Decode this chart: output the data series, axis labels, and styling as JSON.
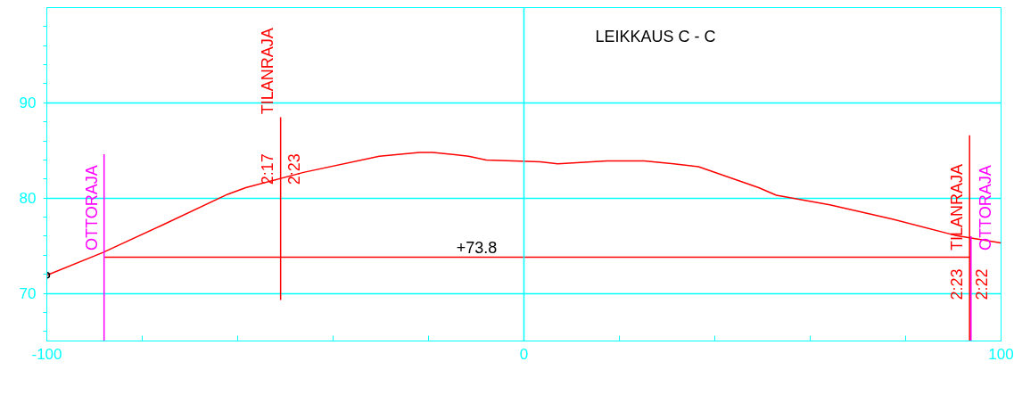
{
  "chart_data": {
    "type": "line",
    "title": "LEIKKAUS C - C",
    "xlim": [
      -100,
      100
    ],
    "ylim": [
      65,
      100
    ],
    "xticks": [
      -100,
      {
        "value": -80,
        "label": null
      },
      {
        "value": -60,
        "label": null
      },
      {
        "value": -40,
        "label": null
      },
      {
        "value": -20,
        "label": null
      },
      0,
      {
        "value": 20,
        "label": null
      },
      {
        "value": 40,
        "label": null
      },
      {
        "value": 60,
        "label": null
      },
      {
        "value": 80,
        "label": null
      },
      100
    ],
    "yticks": [
      {
        "value": 66,
        "label": null
      },
      {
        "value": 68,
        "label": null
      },
      70,
      {
        "value": 72,
        "label": null
      },
      {
        "value": 74,
        "label": null
      },
      {
        "value": 76,
        "label": null
      },
      {
        "value": 78,
        "label": null
      },
      80,
      {
        "value": 82,
        "label": null
      },
      {
        "value": 84,
        "label": null
      },
      {
        "value": 86,
        "label": null
      },
      {
        "value": 88,
        "label": null
      },
      90,
      {
        "value": 92,
        "label": null
      },
      {
        "value": 94,
        "label": null
      },
      {
        "value": 96,
        "label": null
      },
      {
        "value": 98,
        "label": null
      }
    ],
    "grid": "y",
    "ref_lines": [
      {
        "axis": "x",
        "value": 0,
        "color": "#00ffff"
      }
    ],
    "series": [
      {
        "color": "#ff0000",
        "x": [
          -100,
          -88.2,
          -76.1,
          -62.1,
          -58.3,
          -46.2,
          -30.3,
          -21.9,
          -19.1,
          -11.6,
          -7.9,
          3.4,
          7.1,
          17.4,
          25.2,
          31.4,
          36.6,
          49.2,
          52.9,
          64.1,
          77.2,
          90.3,
          100
        ],
        "values": [
          71.9,
          74.3,
          77.1,
          80.4,
          81.1,
          82.7,
          84.4,
          84.8,
          84.8,
          84.4,
          84.0,
          83.8,
          83.6,
          83.9,
          83.9,
          83.6,
          83.3,
          81.1,
          80.3,
          79.3,
          77.8,
          76.1,
          75.3
        ]
      },
      {
        "color": "#ff0000",
        "x": [
          -87.9,
          93.4
        ],
        "values": [
          73.8,
          73.8
        ]
      },
      {
        "color": "#ff00ff",
        "x": [
          -88,
          -88
        ],
        "values": [
          84.6,
          65
        ]
      },
      {
        "color": "#ff0000",
        "x": [
          -51,
          -51
        ],
        "values": [
          88.5,
          69.3
        ]
      },
      {
        "color": "#ff0000",
        "x": [
          93.4,
          93.4
        ],
        "values": [
          86.6,
          65
        ]
      },
      {
        "color": "#ff00ff",
        "x": [
          93.7,
          93.7
        ],
        "values": [
          76.0,
          65
        ]
      },
      {
        "type": "scatter",
        "color": "#000000",
        "x": [
          -100
        ],
        "values": [
          71.9
        ]
      }
    ],
    "annotations": [
      {
        "text": "+73.8",
        "x": -9.9,
        "y": 73.8
      },
      {
        "text": "OTTORAJA",
        "x": -88,
        "y": 74.5
      },
      {
        "text": "TILANRAJA",
        "x": -51,
        "y": 88.8
      },
      {
        "text": "2:17",
        "x": -51,
        "y": 81.4
      },
      {
        "text": "2:23",
        "x": -51,
        "y": 81.4
      },
      {
        "text": "TILANRAJA",
        "x": 93.4,
        "y": 74.5
      },
      {
        "text": "OTTORAJA",
        "x": 93.7,
        "y": 74.5
      },
      {
        "text": "2:23",
        "x": 93.4,
        "y": 69.3
      },
      {
        "text": "2:22",
        "x": 93.4,
        "y": 69.3
      }
    ]
  }
}
